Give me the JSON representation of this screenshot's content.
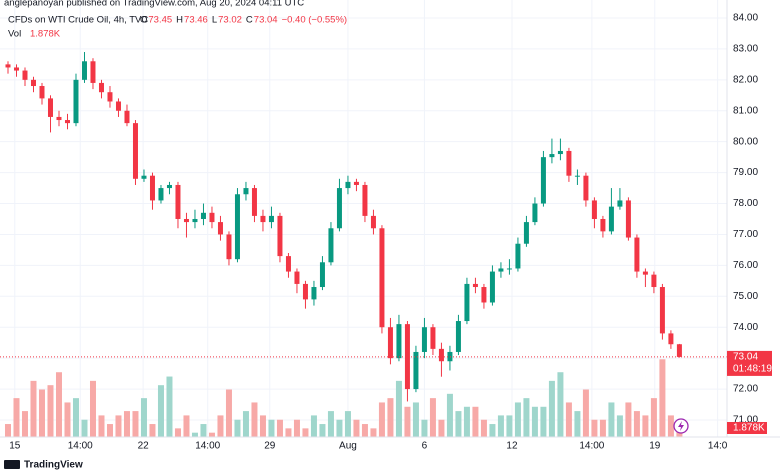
{
  "chart_data": {
    "type": "candlestick",
    "publisher": "anglepanoyan published on TradingView.com, Aug 20, 2024 04:11 UTC",
    "symbol": "CFDs on WTI Crude Oil, 4h, TVC",
    "ohlc_legend": [
      {
        "label": "O",
        "value": "73.45"
      },
      {
        "label": "H",
        "value": "73.46"
      },
      {
        "label": "L",
        "value": "73.02"
      },
      {
        "label": "C",
        "value": "73.04"
      }
    ],
    "change_text": "−0.40 (−0.55%)",
    "volume_legend": {
      "label": "Vol",
      "value": "1.878K"
    },
    "last_price_label": "73.04",
    "countdown": "01:48:19",
    "last_volume_label": "1.878K",
    "logo": "TradingView",
    "up_color": "#089981",
    "down_color": "#f23645",
    "volume_up_color": "#9fd6cc",
    "volume_down_color": "#f7a9a7",
    "grid": true,
    "open": [
      82.5,
      82.4,
      82.3,
      82.0,
      81.8,
      81.4,
      80.8,
      80.7,
      80.6,
      82.0,
      82.6,
      81.9,
      81.6,
      81.3,
      81.0,
      80.6,
      78.8,
      78.9,
      78.1,
      78.5,
      78.6,
      77.5,
      77.4,
      77.5,
      77.7,
      77.4,
      77.0,
      76.2,
      78.3,
      78.5,
      77.6,
      77.4,
      77.6,
      76.3,
      75.8,
      75.4,
      74.9,
      75.3,
      76.1,
      77.2,
      78.5,
      78.7,
      78.6,
      77.6,
      77.2,
      74.0,
      73.0,
      74.1,
      72.0,
      73.2,
      74.0,
      73.3,
      72.9,
      73.2,
      74.2,
      75.4,
      75.3,
      74.8,
      75.8,
      75.9,
      75.9,
      76.7,
      77.4,
      78.0,
      79.5,
      79.6,
      79.7,
      78.9,
      78.9,
      78.1,
      77.5,
      77.1,
      77.9,
      78.1,
      76.9,
      75.8,
      75.7,
      75.3,
      73.8,
      73.45
    ],
    "high": [
      82.6,
      82.5,
      82.4,
      82.1,
      81.9,
      81.5,
      81.0,
      80.9,
      82.2,
      82.9,
      82.7,
      82.0,
      81.8,
      81.4,
      81.2,
      80.7,
      79.1,
      79.0,
      78.6,
      78.7,
      78.7,
      77.7,
      77.8,
      78.0,
      77.9,
      77.6,
      77.1,
      78.5,
      78.7,
      78.6,
      77.8,
      77.9,
      77.7,
      76.4,
      75.9,
      75.5,
      75.5,
      76.3,
      77.4,
      78.8,
      78.9,
      78.8,
      78.7,
      77.8,
      77.3,
      74.3,
      74.4,
      74.2,
      73.4,
      74.3,
      74.1,
      73.5,
      73.4,
      74.4,
      75.6,
      75.6,
      75.4,
      76.0,
      76.1,
      76.2,
      76.9,
      77.6,
      78.2,
      79.7,
      80.1,
      80.1,
      79.8,
      79.1,
      79.0,
      78.2,
      77.6,
      78.5,
      78.5,
      78.2,
      77.0,
      75.9,
      75.8,
      75.4,
      73.9,
      73.46
    ],
    "low": [
      82.2,
      82.1,
      81.8,
      81.6,
      81.2,
      80.3,
      80.5,
      80.4,
      80.5,
      81.9,
      81.7,
      81.4,
      81.1,
      80.8,
      80.5,
      78.6,
      78.7,
      77.8,
      78.0,
      78.3,
      77.2,
      76.9,
      77.2,
      77.3,
      77.2,
      76.8,
      76.0,
      76.1,
      78.1,
      77.4,
      77.1,
      77.2,
      76.1,
      75.6,
      75.1,
      74.6,
      74.7,
      75.2,
      76.0,
      77.1,
      78.3,
      78.4,
      77.4,
      77.0,
      73.8,
      72.8,
      72.9,
      71.6,
      71.9,
      73.0,
      73.1,
      72.4,
      72.6,
      73.1,
      74.1,
      75.1,
      74.6,
      74.7,
      75.6,
      75.7,
      75.8,
      76.6,
      77.3,
      77.9,
      79.3,
      79.4,
      78.7,
      78.6,
      77.9,
      77.2,
      76.9,
      77.0,
      77.8,
      76.8,
      75.6,
      75.3,
      75.1,
      73.6,
      73.3,
      73.02
    ],
    "close": [
      82.4,
      82.3,
      82.0,
      81.8,
      81.4,
      80.8,
      80.7,
      80.6,
      82.0,
      82.6,
      81.9,
      81.6,
      81.3,
      81.0,
      80.6,
      78.8,
      78.9,
      78.1,
      78.5,
      78.6,
      77.5,
      77.4,
      77.5,
      77.7,
      77.4,
      77.0,
      76.2,
      78.3,
      78.5,
      77.6,
      77.4,
      77.6,
      76.3,
      75.8,
      75.4,
      74.9,
      75.3,
      76.1,
      77.2,
      78.5,
      78.7,
      78.6,
      77.6,
      77.2,
      74.0,
      73.0,
      74.1,
      72.0,
      73.2,
      74.0,
      73.3,
      72.9,
      73.2,
      74.2,
      75.4,
      75.3,
      74.8,
      75.8,
      75.9,
      75.9,
      76.7,
      77.4,
      78.0,
      79.5,
      79.6,
      79.7,
      78.9,
      78.9,
      78.1,
      77.5,
      77.1,
      77.9,
      78.1,
      76.9,
      75.8,
      75.7,
      75.3,
      73.8,
      73.45,
      73.04
    ],
    "volume": [
      3000,
      9000,
      6000,
      13000,
      11000,
      12000,
      15000,
      8000,
      9000,
      4000,
      13000,
      5000,
      3000,
      5000,
      6000,
      6000,
      9000,
      3000,
      12000,
      14000,
      2000,
      5000,
      1000,
      3000,
      1000,
      5000,
      11000,
      4000,
      6000,
      8000,
      5000,
      4000,
      4000,
      2000,
      4000,
      2000,
      5000,
      3000,
      6000,
      4000,
      6000,
      4000,
      3000,
      2000,
      8000,
      9000,
      13000,
      7000,
      8000,
      4000,
      9000,
      4000,
      10000,
      6000,
      7000,
      7000,
      4000,
      3000,
      5000,
      5000,
      8000,
      9000,
      7000,
      7000,
      13000,
      15000,
      8000,
      6000,
      11000,
      4000,
      4000,
      8000,
      5000,
      8000,
      6000,
      5000,
      9000,
      18000,
      5000,
      1878
    ],
    "volume_lim": [
      0,
      22000
    ],
    "xlim": [
      -0.47,
      84.6
    ],
    "xticks": [
      {
        "value": 0.8,
        "label": "15"
      },
      {
        "value": 8.5,
        "label": "14:00"
      },
      {
        "value": 15.9,
        "label": "22"
      },
      {
        "value": 23.5,
        "label": "14:00"
      },
      {
        "value": 30.8,
        "label": "29"
      },
      {
        "value": 40,
        "label": "Aug"
      },
      {
        "value": 49,
        "label": "6"
      },
      {
        "value": 59.3,
        "label": "12"
      },
      {
        "value": 68.7,
        "label": "14:00"
      },
      {
        "value": 76.1,
        "label": "19"
      },
      {
        "value": 83.5,
        "label": "14:0"
      }
    ],
    "ylim": [
      70.45,
      84.42
    ],
    "yticks": [
      {
        "value": 71,
        "label": "71.00"
      },
      {
        "value": 72,
        "label": "72.00"
      },
      {
        "value": 73,
        "label": "73.00"
      },
      {
        "value": 74,
        "label": "74.00"
      },
      {
        "value": 75,
        "label": "75.00"
      },
      {
        "value": 76,
        "label": "76.00"
      },
      {
        "value": 77,
        "label": "77.00"
      },
      {
        "value": 78,
        "label": "78.00"
      },
      {
        "value": 79,
        "label": "79.00"
      },
      {
        "value": 80,
        "label": "80.00"
      },
      {
        "value": 81,
        "label": "81.00"
      },
      {
        "value": 82,
        "label": "82.00"
      },
      {
        "value": 83,
        "label": "83.00"
      },
      {
        "value": 84,
        "label": "84.00"
      }
    ]
  }
}
